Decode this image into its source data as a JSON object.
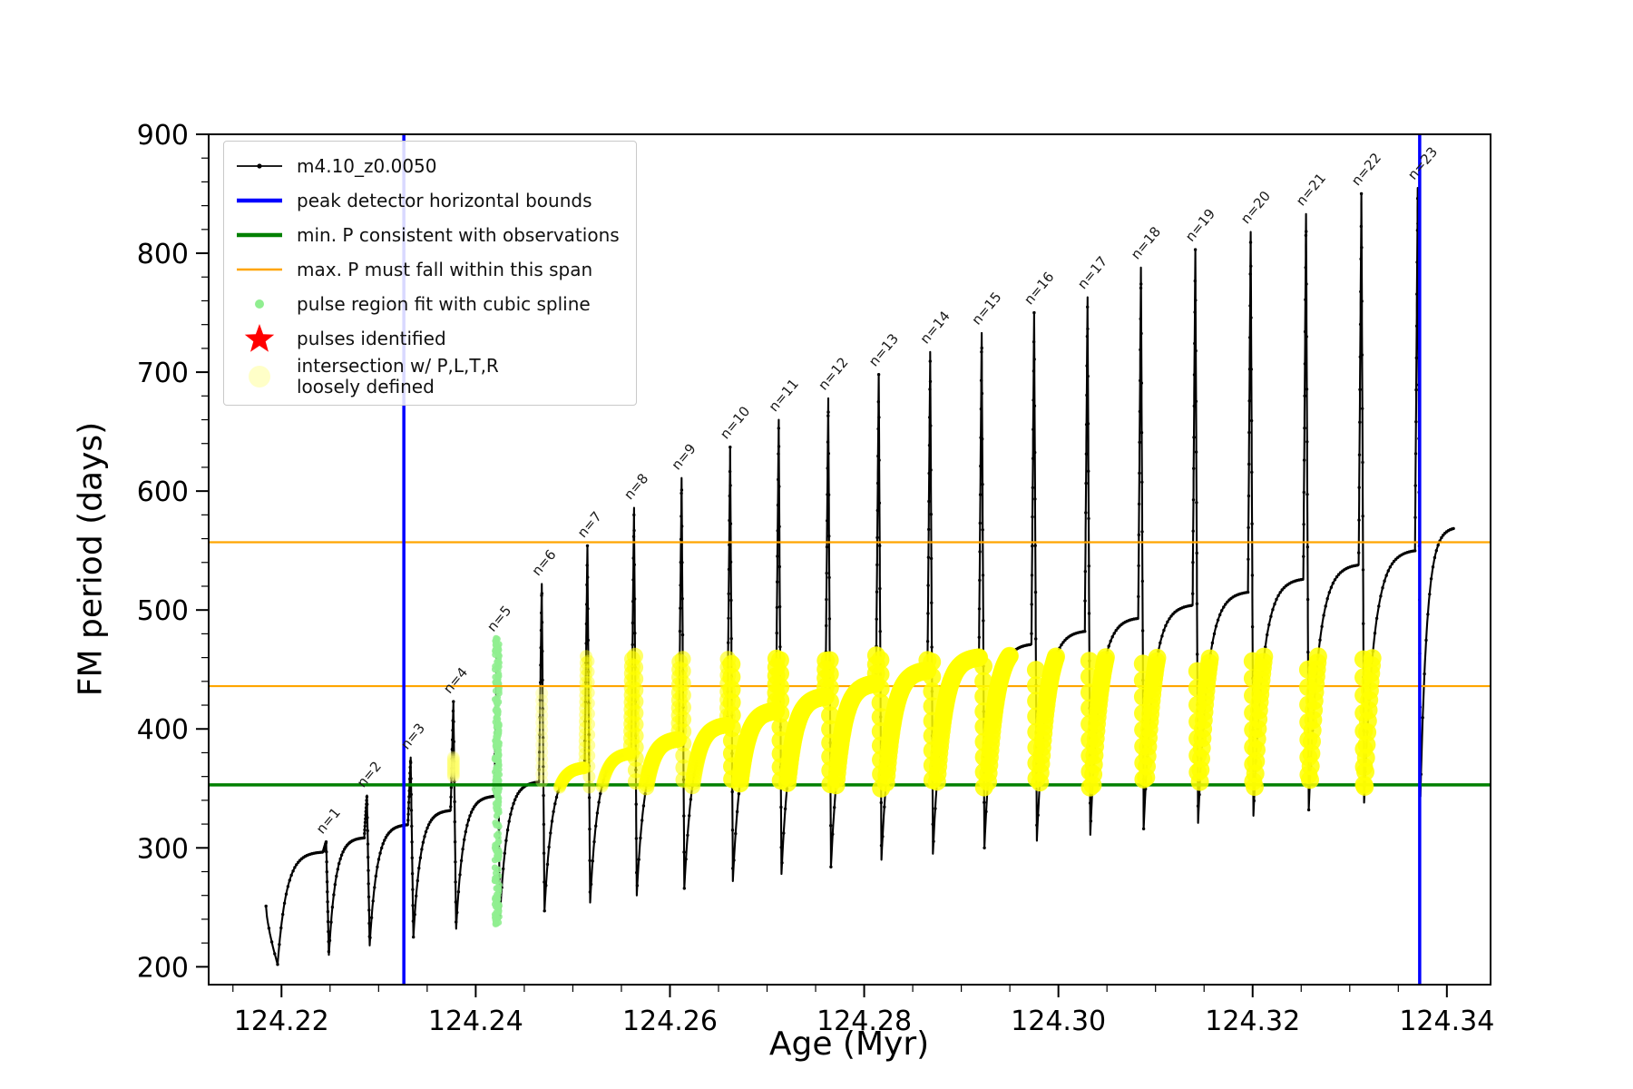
{
  "figure": {
    "xlabel": "Age (Myr)",
    "ylabel": "FM period (days)",
    "background": "#ffffff"
  },
  "axes": {
    "xlim": [
      124.2125,
      124.3445
    ],
    "ylim": [
      185,
      900
    ],
    "x_ticks": [
      124.22,
      124.24,
      124.26,
      124.28,
      124.3,
      124.32,
      124.34
    ],
    "x_tick_labels": [
      "124.22",
      "124.24",
      "124.26",
      "124.28",
      "124.30",
      "124.32",
      "124.34"
    ],
    "y_ticks": [
      200,
      300,
      400,
      500,
      600,
      700,
      800,
      900
    ],
    "x_minor_step": 0.005,
    "y_minor_step": 20
  },
  "legend": {
    "entries": [
      {
        "label": "m4.10_z0.0050",
        "marker": "line-dot",
        "marker_name": "series-line-icon",
        "color": "#000000"
      },
      {
        "label": "peak detector horizontal bounds",
        "marker": "thick-line",
        "marker_name": "blue-line-icon",
        "color": "#0000ff"
      },
      {
        "label": "min. P consistent with observations",
        "marker": "thick-line",
        "marker_name": "green-line-icon",
        "color": "#008000"
      },
      {
        "label": "max. P must fall within this span",
        "marker": "line",
        "marker_name": "orange-line-icon",
        "color": "#ffa500"
      },
      {
        "label": "pulse region fit with cubic spline",
        "marker": "dot-small",
        "marker_name": "spline-dot-icon",
        "color": "#90ee90"
      },
      {
        "label": "pulses identified",
        "marker": "star",
        "marker_name": "star-icon",
        "color": "#ff0000"
      },
      {
        "label": "intersection w/ P,L,T,R\nloosely defined",
        "marker": "dot-large",
        "marker_name": "intersection-dot-icon",
        "color": "#ffffc8"
      }
    ]
  },
  "chart_data": {
    "type": "line",
    "title": "",
    "xlabel": "Age (Myr)",
    "ylabel": "FM period (days)",
    "xlim": [
      124.2125,
      124.3445
    ],
    "ylim": [
      185,
      900
    ],
    "series_label": "m4.10_z0.0050",
    "series_color": "#000000",
    "pulse_label_prefix": "n=",
    "pre_segment": {
      "x_start": 124.2184,
      "v_start": 251,
      "x_dip": 124.2196,
      "v_dip": 202
    },
    "pulses": [
      {
        "n": 1,
        "x": 124.2246,
        "plateau": 297,
        "spike_top": 305,
        "notch": 210
      },
      {
        "n": 2,
        "x": 124.2288,
        "plateau": 309,
        "spike_top": 344,
        "notch": 218
      },
      {
        "n": 3,
        "x": 124.2333,
        "plateau": 320,
        "spike_top": 376,
        "notch": 225
      },
      {
        "n": 4,
        "x": 124.2377,
        "plateau": 332,
        "spike_top": 423,
        "notch": 232
      },
      {
        "n": 5,
        "x": 124.2422,
        "plateau": 344,
        "spike_top": 475,
        "notch": 240
      },
      {
        "n": 6,
        "x": 124.2468,
        "plateau": 356,
        "spike_top": 522,
        "notch": 247
      },
      {
        "n": 7,
        "x": 124.2515,
        "plateau": 368,
        "spike_top": 554,
        "notch": 254
      },
      {
        "n": 8,
        "x": 124.2563,
        "plateau": 380,
        "spike_top": 586,
        "notch": 260
      },
      {
        "n": 9,
        "x": 124.2612,
        "plateau": 392,
        "spike_top": 611,
        "notch": 266
      },
      {
        "n": 10,
        "x": 124.2662,
        "plateau": 404,
        "spike_top": 637,
        "notch": 272
      },
      {
        "n": 11,
        "x": 124.2712,
        "plateau": 416,
        "spike_top": 660,
        "notch": 278
      },
      {
        "n": 12,
        "x": 124.2763,
        "plateau": 428,
        "spike_top": 678,
        "notch": 284
      },
      {
        "n": 13,
        "x": 124.2815,
        "plateau": 439,
        "spike_top": 698,
        "notch": 290
      },
      {
        "n": 14,
        "x": 124.2868,
        "plateau": 450,
        "spike_top": 717,
        "notch": 295
      },
      {
        "n": 15,
        "x": 124.2921,
        "plateau": 461,
        "spike_top": 733,
        "notch": 300
      },
      {
        "n": 16,
        "x": 124.2975,
        "plateau": 472,
        "spike_top": 750,
        "notch": 306
      },
      {
        "n": 17,
        "x": 124.303,
        "plateau": 483,
        "spike_top": 763,
        "notch": 311
      },
      {
        "n": 18,
        "x": 124.3085,
        "plateau": 494,
        "spike_top": 788,
        "notch": 316
      },
      {
        "n": 19,
        "x": 124.3141,
        "plateau": 505,
        "spike_top": 803,
        "notch": 321
      },
      {
        "n": 20,
        "x": 124.3198,
        "plateau": 516,
        "spike_top": 818,
        "notch": 327
      },
      {
        "n": 21,
        "x": 124.3255,
        "plateau": 527,
        "spike_top": 833,
        "notch": 332
      },
      {
        "n": 22,
        "x": 124.3312,
        "plateau": 539,
        "spike_top": 850,
        "notch": 338
      },
      {
        "n": 23,
        "x": 124.337,
        "plateau": 551,
        "spike_top": 855,
        "notch": 343
      }
    ],
    "tail": {
      "x_end": 124.3408,
      "v_end": 570
    },
    "vlines": {
      "label": "peak detector horizontal bounds",
      "color": "#0000ff",
      "x": [
        124.2326,
        124.3372
      ]
    },
    "hline_green": {
      "label": "min. P consistent with observations",
      "color": "#008000",
      "y": 353
    },
    "hlines_orange": {
      "label": "max. P must fall within this span",
      "color": "#ffa500",
      "y": [
        436,
        557
      ]
    },
    "spline_region": {
      "label": "pulse region fit with cubic spline",
      "color": "#90ee90",
      "x": 124.2422,
      "y_min": 235,
      "y_max": 477
    },
    "intersection_region": {
      "label": "intersection w/ P,L,T,R loosely defined",
      "color": "#ffff00",
      "x_min": 124.2476,
      "x_max": 124.3372,
      "y_min": 350,
      "y_max": 462
    },
    "sparse_columns": [
      {
        "x": 124.2377,
        "y_min": 360,
        "y_max": 376
      },
      {
        "x": 124.2468,
        "y_min": 356,
        "y_max": 430
      }
    ]
  }
}
